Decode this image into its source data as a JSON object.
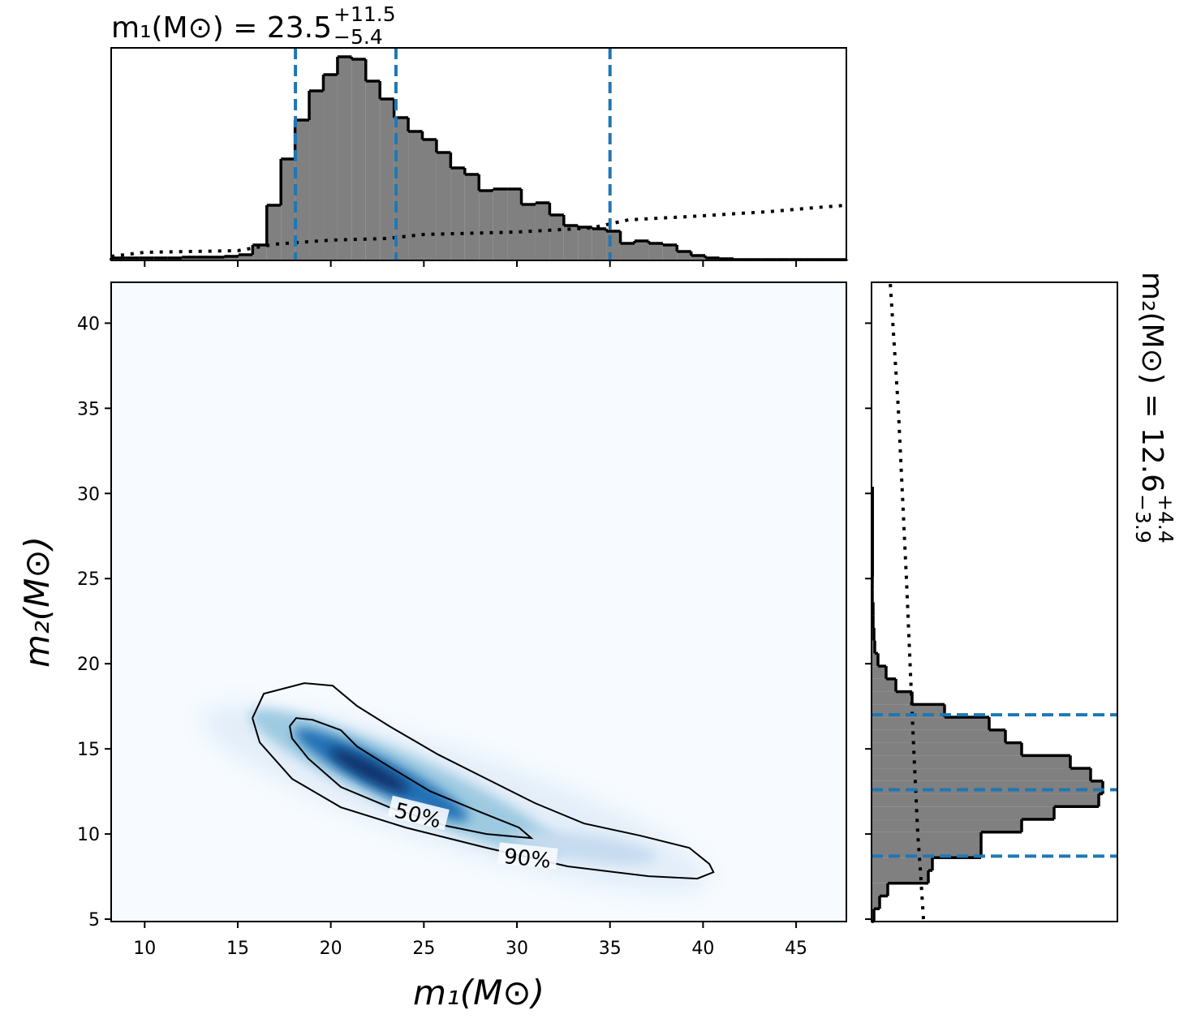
{
  "chart_data": {
    "type": "corner",
    "title": {
      "text": "m₁(M⊙) = 23.5",
      "plus": "+11.5",
      "minus": "−5.4"
    },
    "right_title": {
      "text": "m₂(M⊙) = 12.6",
      "plus": "+4.4",
      "minus": "−3.9"
    },
    "x_label": "m₁(M⊙)",
    "y_label": "m₂(M⊙)",
    "xlim": [
      8.2,
      47.7
    ],
    "ylim": [
      4.86,
      42.4
    ],
    "xticks": [
      10,
      15,
      20,
      25,
      30,
      35,
      40,
      45
    ],
    "yticks": [
      5,
      10,
      15,
      20,
      25,
      30,
      35,
      40
    ],
    "marginal_x": {
      "type": "histogram",
      "color": "#808080",
      "quantile_color": "#1f77b4",
      "bins": [
        8.2,
        8.96,
        9.72,
        10.48,
        11.24,
        12.0,
        12.76,
        13.52,
        14.28,
        15.04,
        15.8,
        16.56,
        17.32,
        18.08,
        18.84,
        19.6,
        20.36,
        21.12,
        21.88,
        22.64,
        23.4,
        24.16,
        24.92,
        25.68,
        26.44,
        27.2,
        27.96,
        28.72,
        29.48,
        30.24,
        31.0,
        31.76,
        32.52,
        33.28,
        34.04,
        34.8,
        35.56,
        36.32,
        37.08,
        37.84,
        38.6,
        39.36,
        40.12,
        40.88,
        41.64,
        42.4,
        43.16,
        43.92,
        44.68,
        45.44,
        46.2,
        46.96,
        47.72
      ],
      "values": [
        3,
        3,
        3,
        3,
        3,
        4,
        4,
        4,
        5,
        7,
        19,
        68,
        125,
        173,
        209,
        229,
        251,
        248,
        221,
        199,
        176,
        159,
        149,
        133,
        114,
        106,
        86,
        88,
        88,
        69,
        71,
        56,
        43,
        41,
        39,
        36,
        21,
        24,
        21,
        19,
        11,
        6,
        3,
        2,
        1,
        1,
        1,
        1,
        1,
        1,
        1,
        1
      ],
      "vlim": [
        0,
        262
      ],
      "quantiles": [
        18.1,
        23.5,
        35.0
      ],
      "prior": {
        "x": [
          8.2,
          10,
          15,
          17,
          20,
          23,
          25,
          30,
          34,
          36,
          40,
          42,
          43.5,
          46,
          47.7
        ],
        "values": [
          5,
          10,
          12,
          20,
          25,
          27,
          32,
          35,
          40,
          50,
          55,
          58,
          60,
          65,
          68
        ]
      }
    },
    "marginal_y": {
      "type": "histogram",
      "color": "#808080",
      "quantile_color": "#1f77b4",
      "bins": [
        4.86,
        5.61,
        6.36,
        7.11,
        7.86,
        8.61,
        9.36,
        10.11,
        10.86,
        11.61,
        12.36,
        13.11,
        13.86,
        14.61,
        15.36,
        16.11,
        16.86,
        17.61,
        18.36,
        19.11,
        19.86,
        20.61,
        21.36,
        22.11,
        22.86,
        23.61,
        24.36,
        25.11
      ],
      "values": [
        3,
        10,
        20,
        70,
        75,
        135,
        135,
        185,
        225,
        280,
        285,
        270,
        245,
        185,
        165,
        145,
        90,
        50,
        30,
        18,
        8,
        4,
        3,
        2,
        2,
        1,
        1
      ],
      "vlim": [
        0,
        303
      ],
      "quantiles": [
        8.7,
        12.6,
        17.0
      ],
      "prior": {
        "y": [
          5,
          8,
          10,
          15,
          25,
          35,
          42.4
        ],
        "values": [
          64,
          60,
          57,
          52,
          43,
          33,
          23
        ]
      }
    },
    "contours": [
      {
        "label": "50%",
        "x": [
          17.79,
          18.14,
          19.01,
          20.54,
          21.41,
          23.15,
          25.32,
          27.94,
          30.11,
          30.77,
          28.37,
          26.2,
          23.15,
          20.54,
          18.79,
          17.92,
          17.79
        ],
        "y": [
          16.33,
          16.81,
          16.71,
          16.1,
          15.14,
          13.95,
          12.52,
          11.33,
          10.38,
          9.76,
          10.0,
          10.48,
          11.57,
          12.76,
          14.43,
          15.62,
          16.33
        ]
      },
      {
        "label": "90%",
        "x": [
          15.79,
          16.4,
          18.58,
          20.1,
          21.41,
          23.15,
          25.76,
          28.37,
          30.98,
          33.6,
          36.64,
          39.26,
          40.34,
          40.56,
          39.69,
          37.08,
          32.73,
          28.37,
          24.02,
          20.54,
          17.92,
          16.18,
          15.79
        ],
        "y": [
          16.81,
          18.24,
          18.86,
          18.71,
          17.52,
          16.33,
          14.67,
          13.24,
          11.81,
          10.62,
          9.9,
          9.19,
          8.24,
          7.76,
          7.38,
          7.52,
          8.1,
          9.19,
          10.38,
          11.57,
          13.24,
          15.38,
          16.81
        ]
      }
    ]
  }
}
